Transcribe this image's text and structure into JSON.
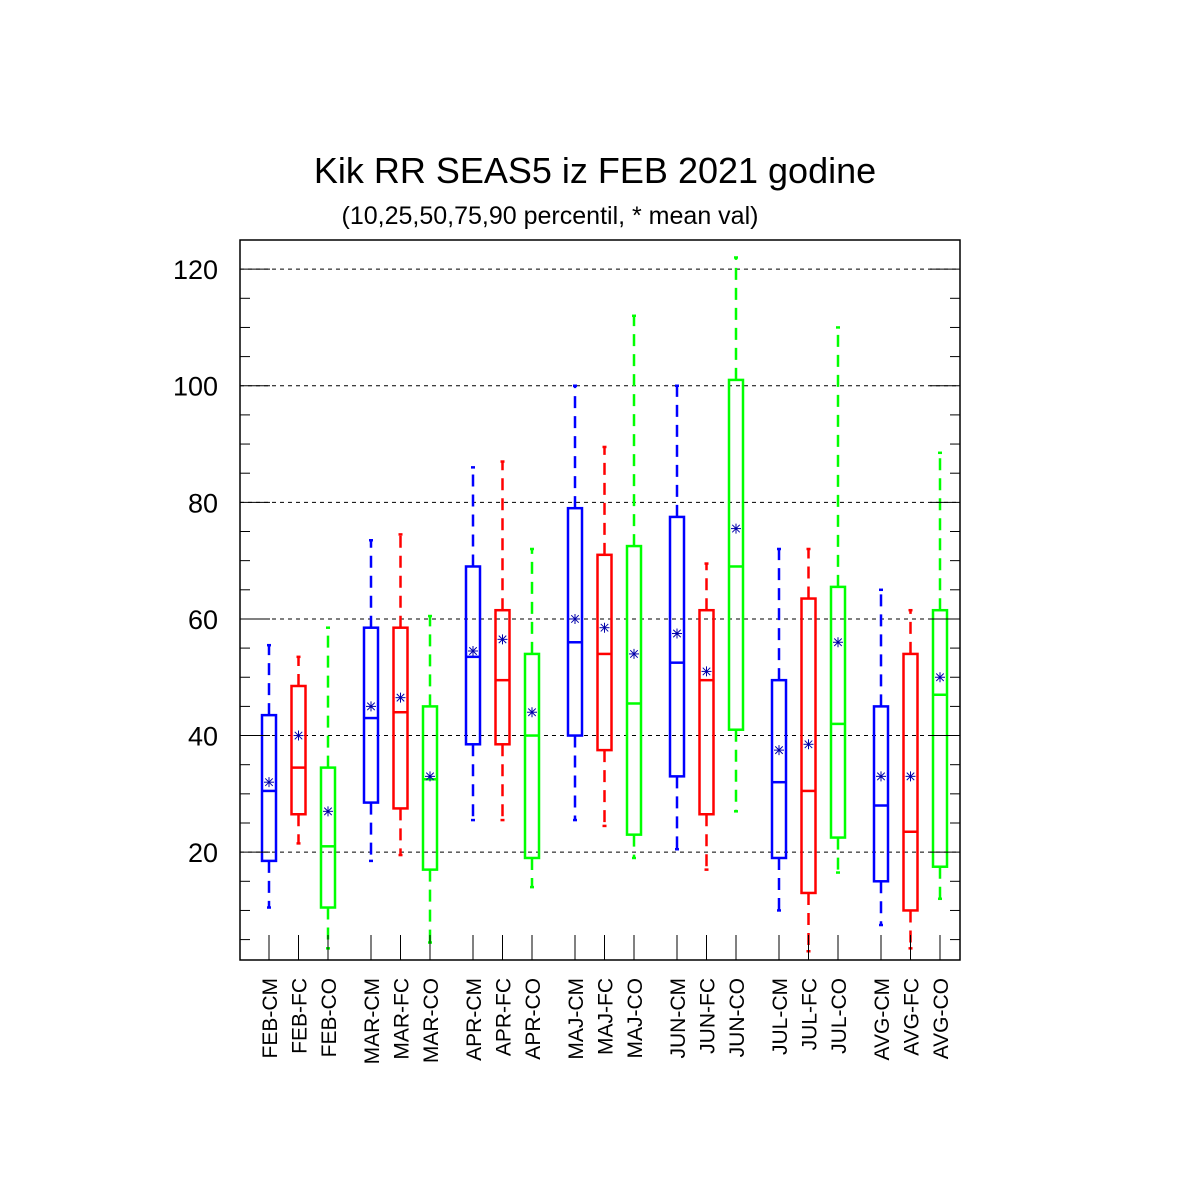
{
  "chart_data": {
    "type": "boxplot",
    "title": "Kik RR SEAS5 iz FEB 2021 godine",
    "subtitle": "(10,25,50,75,90 percentil, * mean val)",
    "xlabel": "",
    "ylabel": "",
    "ylim": [
      1.5,
      125
    ],
    "y_ticks": [
      20,
      40,
      60,
      80,
      100,
      120
    ],
    "grid": "horizontal dashed",
    "colors": {
      "CM": "#0000ff",
      "FC": "#ff0000",
      "CO": "#00ff00",
      "axis": "#000000",
      "mean_marker": "#0000aa"
    },
    "groups": [
      {
        "boxes": [
          {
            "label": "FEB-CM",
            "color": "#0000ff",
            "p10": 10.5,
            "p25": 18.5,
            "p50": 30.5,
            "p75": 43.5,
            "p90": 55.5,
            "mean": 32
          },
          {
            "label": "FEB-FC",
            "color": "#ff0000",
            "p10": 21.5,
            "p25": 26.5,
            "p50": 34.5,
            "p75": 48.5,
            "p90": 53.5,
            "mean": 40
          },
          {
            "label": "FEB-CO",
            "color": "#00ff00",
            "p10": 3.5,
            "p25": 10.5,
            "p50": 21,
            "p75": 34.5,
            "p90": 58.5,
            "mean": 27
          }
        ]
      },
      {
        "boxes": [
          {
            "label": "MAR-CM",
            "color": "#0000ff",
            "p10": 18.5,
            "p25": 28.5,
            "p50": 43,
            "p75": 58.5,
            "p90": 73.5,
            "mean": 45
          },
          {
            "label": "MAR-FC",
            "color": "#ff0000",
            "p10": 19.5,
            "p25": 27.5,
            "p50": 44,
            "p75": 58.5,
            "p90": 74.5,
            "mean": 46.5
          },
          {
            "label": "MAR-CO",
            "color": "#00ff00",
            "p10": 4.5,
            "p25": 17,
            "p50": 32.5,
            "p75": 45,
            "p90": 60.5,
            "mean": 33
          }
        ]
      },
      {
        "boxes": [
          {
            "label": "APR-CM",
            "color": "#0000ff",
            "p10": 25.5,
            "p25": 38.5,
            "p50": 53.5,
            "p75": 69,
            "p90": 86,
            "mean": 54.5
          },
          {
            "label": "APR-FC",
            "color": "#ff0000",
            "p10": 25.5,
            "p25": 38.5,
            "p50": 49.5,
            "p75": 61.5,
            "p90": 87,
            "mean": 56.5
          },
          {
            "label": "APR-CO",
            "color": "#00ff00",
            "p10": 14,
            "p25": 19,
            "p50": 40,
            "p75": 54,
            "p90": 72,
            "mean": 44
          }
        ]
      },
      {
        "boxes": [
          {
            "label": "MAJ-CM",
            "color": "#0000ff",
            "p10": 25.5,
            "p25": 40,
            "p50": 56,
            "p75": 79,
            "p90": 100,
            "mean": 60
          },
          {
            "label": "MAJ-FC",
            "color": "#ff0000",
            "p10": 24.5,
            "p25": 37.5,
            "p50": 54,
            "p75": 71,
            "p90": 89.5,
            "mean": 58.5
          },
          {
            "label": "MAJ-CO",
            "color": "#00ff00",
            "p10": 19,
            "p25": 23,
            "p50": 45.5,
            "p75": 72.5,
            "p90": 112,
            "mean": 54
          }
        ]
      },
      {
        "boxes": [
          {
            "label": "JUN-CM",
            "color": "#0000ff",
            "p10": 20.5,
            "p25": 33,
            "p50": 52.5,
            "p75": 77.5,
            "p90": 100,
            "mean": 57.5
          },
          {
            "label": "JUN-FC",
            "color": "#ff0000",
            "p10": 17,
            "p25": 26.5,
            "p50": 49.5,
            "p75": 61.5,
            "p90": 69.5,
            "mean": 51
          },
          {
            "label": "JUN-CO",
            "color": "#00ff00",
            "p10": 27,
            "p25": 41,
            "p50": 69,
            "p75": 101,
            "p90": 122,
            "mean": 75.5
          }
        ]
      },
      {
        "boxes": [
          {
            "label": "JUL-CM",
            "color": "#0000ff",
            "p10": 10,
            "p25": 19,
            "p50": 32,
            "p75": 49.5,
            "p90": 72,
            "mean": 37.5
          },
          {
            "label": "JUL-FC",
            "color": "#ff0000",
            "p10": 3,
            "p25": 13,
            "p50": 30.5,
            "p75": 63.5,
            "p90": 72,
            "mean": 38.5
          },
          {
            "label": "JUL-CO",
            "color": "#00ff00",
            "p10": 16.5,
            "p25": 22.5,
            "p50": 42,
            "p75": 65.5,
            "p90": 110,
            "mean": 56
          }
        ]
      },
      {
        "boxes": [
          {
            "label": "AVG-CM",
            "color": "#0000ff",
            "p10": 7.5,
            "p25": 15,
            "p50": 28,
            "p75": 45,
            "p90": 65,
            "mean": 33
          },
          {
            "label": "AVG-FC",
            "color": "#ff0000",
            "p10": 3.5,
            "p25": 10,
            "p50": 23.5,
            "p75": 54,
            "p90": 61.5,
            "mean": 33
          },
          {
            "label": "AVG-CO",
            "color": "#00ff00",
            "p10": 12,
            "p25": 17.5,
            "p50": 47,
            "p75": 61.5,
            "p90": 88.5,
            "mean": 50
          }
        ]
      }
    ]
  }
}
